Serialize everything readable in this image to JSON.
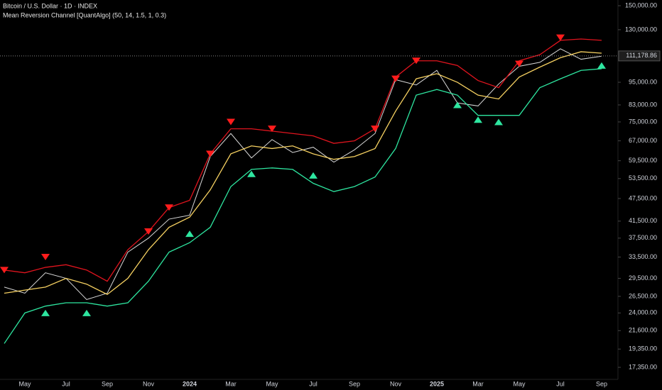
{
  "chart_data": {
    "type": "line",
    "title": "Bitcoin / U.S. Dollar · 1D · INDEX",
    "subtitle": "Mean Reversion Channel [QuantAlgo] (50, 14, 1.5, 1, 0.3)",
    "log_scale": true,
    "grid": false,
    "categories": [
      null,
      "May",
      null,
      "Jul",
      null,
      "Sep",
      null,
      "Nov",
      null,
      "2024",
      null,
      "Mar",
      null,
      "May",
      null,
      "Jul",
      null,
      "Sep",
      null,
      "Nov",
      null,
      "2025",
      null,
      "Mar",
      null,
      "May",
      null,
      "Jul",
      null,
      "Sep"
    ],
    "series": [
      {
        "color": "#d8d8d8",
        "values": [
          28000,
          27000,
          30500,
          29500,
          26000,
          27000,
          34500,
          37500,
          42000,
          43000,
          61000,
          70000,
          60500,
          67500,
          62500,
          64500,
          59000,
          63500,
          70000,
          96500,
          93500,
          102000,
          84000,
          82500,
          94000,
          104500,
          107000,
          116000,
          109000,
          111000
        ]
      },
      {
        "color": "#e0141e",
        "values": [
          31000,
          30500,
          31500,
          32000,
          31000,
          29000,
          35000,
          39000,
          45000,
          47000,
          62000,
          72000,
          72000,
          71000,
          70000,
          69000,
          66000,
          67000,
          72000,
          98000,
          108000,
          108000,
          105000,
          96000,
          92000,
          108000,
          112000,
          122000,
          123000,
          122000
        ]
      },
      {
        "color": "#f5d061",
        "values": [
          27000,
          27500,
          28000,
          29500,
          28500,
          26800,
          29500,
          35000,
          40000,
          42500,
          50000,
          62000,
          65000,
          64000,
          65000,
          62000,
          60000,
          61000,
          64000,
          80000,
          97000,
          100000,
          95000,
          88000,
          86000,
          98000,
          104000,
          110000,
          114000,
          113000
        ]
      },
      {
        "color": "#2ee6a0",
        "values": [
          20000,
          24000,
          25000,
          25500,
          25500,
          25000,
          25500,
          29000,
          34500,
          36500,
          40000,
          51000,
          56500,
          57000,
          56500,
          52000,
          49500,
          51000,
          54000,
          64000,
          88000,
          91000,
          88000,
          78000,
          78000,
          78000,
          92000,
          97000,
          102000,
          103000
        ]
      },
      {
        "color": "#ff1c1c",
        "marker": "triangle-down",
        "values": [
          31000,
          null,
          33500,
          null,
          null,
          null,
          null,
          39000,
          45000,
          null,
          62000,
          75000,
          null,
          72000,
          null,
          null,
          null,
          null,
          72000,
          97000,
          108000,
          null,
          null,
          null,
          null,
          106000,
          null,
          124000,
          null,
          null
        ]
      },
      {
        "color": "#2ee6a0",
        "marker": "triangle-up",
        "values": [
          null,
          null,
          24000,
          null,
          24000,
          null,
          null,
          null,
          null,
          38500,
          null,
          null,
          55000,
          null,
          null,
          54500,
          null,
          null,
          null,
          null,
          null,
          null,
          83000,
          76000,
          75000,
          null,
          null,
          null,
          null,
          105000
        ]
      }
    ],
    "last_price": {
      "value": 111178.86,
      "label": "111,178.86"
    },
    "ylim": [
      16150,
      155200
    ],
    "yticks": [
      {
        "value": 150000,
        "label": "150,000.00"
      },
      {
        "value": 130000,
        "label": "130,000.00"
      },
      {
        "value": 95000,
        "label": "95,000.00"
      },
      {
        "value": 83000,
        "label": "83,000.00"
      },
      {
        "value": 75000,
        "label": "75,000.00"
      },
      {
        "value": 67000,
        "label": "67,000.00"
      },
      {
        "value": 59500,
        "label": "59,500.00"
      },
      {
        "value": 53500,
        "label": "53,500.00"
      },
      {
        "value": 47500,
        "label": "47,500.00"
      },
      {
        "value": 41500,
        "label": "41,500.00"
      },
      {
        "value": 37500,
        "label": "37,500.00"
      },
      {
        "value": 33500,
        "label": "33,500.00"
      },
      {
        "value": 29500,
        "label": "29,500.00"
      },
      {
        "value": 26500,
        "label": "26,500.00"
      },
      {
        "value": 24000,
        "label": "24,000.00"
      },
      {
        "value": 21600,
        "label": "21,600.00"
      },
      {
        "value": 19350,
        "label": "19,350.00"
      },
      {
        "value": 17350,
        "label": "17,350.00"
      }
    ]
  }
}
